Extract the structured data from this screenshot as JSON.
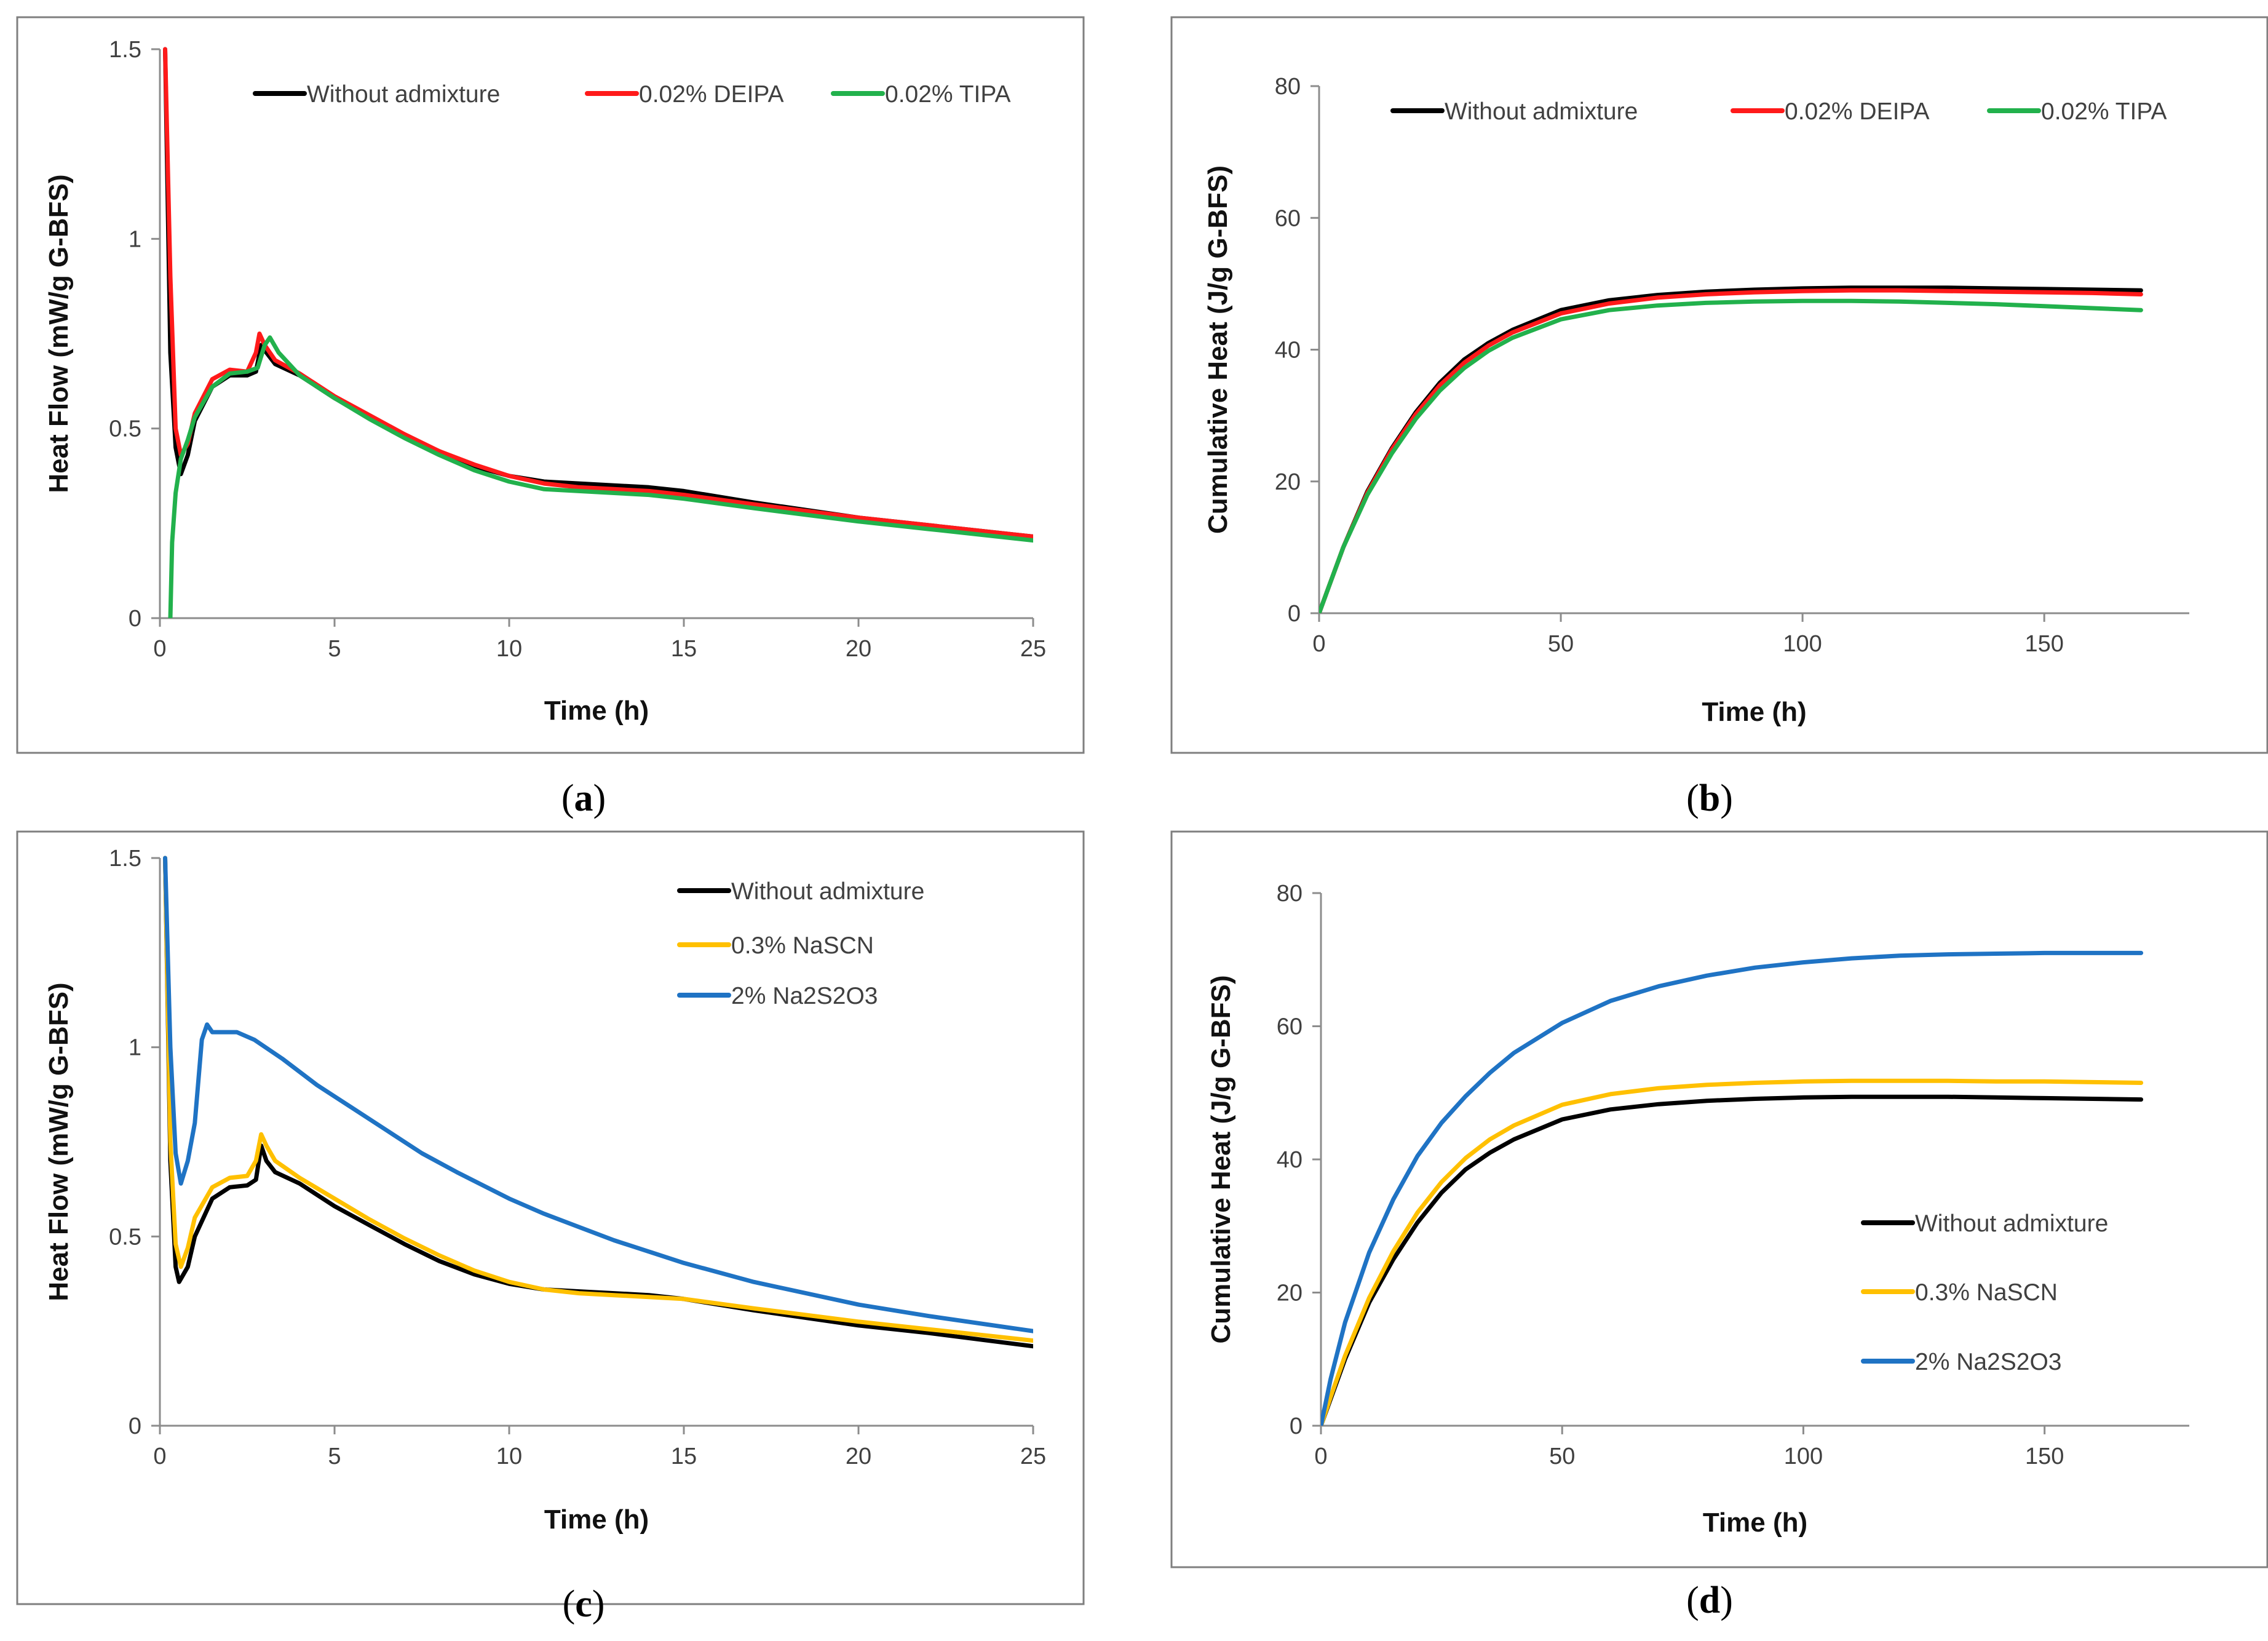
{
  "figure": {
    "panel_labels": [
      {
        "open": "(",
        "letter": "a",
        "close": ")"
      },
      {
        "open": "(",
        "letter": "b",
        "close": ")"
      },
      {
        "open": "(",
        "letter": "c",
        "close": ")"
      },
      {
        "open": "(",
        "letter": "d",
        "close": ")"
      }
    ]
  },
  "chart_data": [
    {
      "id": "a",
      "type": "line",
      "title": "",
      "xlabel": "Time (h)",
      "ylabel": "Heat Flow  (mW/g G-BFS)",
      "xlim": [
        0,
        25
      ],
      "ylim": [
        0,
        1.5
      ],
      "xticks": [
        0,
        5,
        10,
        15,
        20,
        25
      ],
      "xtick_labels": [
        "0",
        "5",
        "10",
        "15",
        "20",
        "25"
      ],
      "yticks": [
        0,
        0.5,
        1,
        1.5
      ],
      "ytick_labels": [
        "0",
        "0.5",
        "1",
        "1.5"
      ],
      "grid": false,
      "legend_position": "top",
      "series": [
        {
          "name": "Without admixture",
          "color": "#000000",
          "x": [
            0.15,
            0.3,
            0.45,
            0.6,
            0.8,
            1.0,
            1.5,
            2.0,
            2.5,
            2.75,
            2.9,
            3.05,
            3.3,
            4.0,
            5,
            6,
            7,
            8,
            9,
            10,
            11,
            12,
            13,
            14,
            15,
            17,
            20,
            22,
            25
          ],
          "y": [
            1.5,
            0.7,
            0.45,
            0.38,
            0.43,
            0.52,
            0.61,
            0.64,
            0.64,
            0.65,
            0.72,
            0.7,
            0.67,
            0.64,
            0.58,
            0.53,
            0.48,
            0.44,
            0.4,
            0.375,
            0.36,
            0.355,
            0.35,
            0.345,
            0.335,
            0.305,
            0.265,
            0.245,
            0.215
          ]
        },
        {
          "name": "0.02% DEIPA",
          "color": "#ff1a1a",
          "x": [
            0.15,
            0.3,
            0.45,
            0.6,
            0.8,
            1.0,
            1.5,
            2.0,
            2.5,
            2.75,
            2.85,
            3.0,
            3.3,
            4.0,
            5,
            6,
            7,
            8,
            9,
            10,
            11,
            12,
            13,
            14,
            15,
            17,
            20,
            22,
            25
          ],
          "y": [
            1.5,
            0.9,
            0.5,
            0.43,
            0.46,
            0.54,
            0.63,
            0.655,
            0.65,
            0.7,
            0.75,
            0.72,
            0.68,
            0.645,
            0.585,
            0.535,
            0.485,
            0.44,
            0.405,
            0.375,
            0.355,
            0.345,
            0.34,
            0.335,
            0.325,
            0.3,
            0.265,
            0.245,
            0.215
          ]
        },
        {
          "name": "0.02% TIPA",
          "color": "#22b14c",
          "x": [
            0.3,
            0.35,
            0.45,
            0.6,
            0.8,
            1.0,
            1.5,
            2.0,
            2.5,
            2.8,
            3.0,
            3.15,
            3.4,
            4.0,
            5,
            6,
            7,
            8,
            9,
            10,
            11,
            12,
            13,
            14,
            15,
            17,
            20,
            22,
            25
          ],
          "y": [
            0.0,
            0.2,
            0.33,
            0.42,
            0.47,
            0.53,
            0.61,
            0.645,
            0.65,
            0.66,
            0.72,
            0.74,
            0.7,
            0.64,
            0.58,
            0.525,
            0.475,
            0.43,
            0.39,
            0.36,
            0.34,
            0.335,
            0.33,
            0.325,
            0.315,
            0.29,
            0.255,
            0.235,
            0.205
          ]
        }
      ]
    },
    {
      "id": "b",
      "type": "line",
      "title": "",
      "xlabel": "Time (h)",
      "ylabel": "Cumulative Heat (J/g G-BFS)",
      "xlim": [
        0,
        180
      ],
      "ylim": [
        0,
        80
      ],
      "xticks": [
        0,
        50,
        100,
        150
      ],
      "xtick_labels": [
        "0",
        "50",
        "100",
        "150"
      ],
      "yticks": [
        0,
        20,
        40,
        60,
        80
      ],
      "ytick_labels": [
        "0",
        "20",
        "40",
        "60",
        "80"
      ],
      "grid": false,
      "legend_position": "top",
      "series": [
        {
          "name": "Without admixture",
          "color": "#000000",
          "x": [
            0,
            2,
            5,
            10,
            15,
            20,
            25,
            30,
            35,
            40,
            50,
            60,
            70,
            80,
            90,
            100,
            110,
            120,
            130,
            140,
            150,
            160,
            170
          ],
          "y": [
            0,
            4,
            10,
            18.5,
            25,
            30.5,
            35,
            38.5,
            41,
            43,
            46,
            47.5,
            48.3,
            48.8,
            49.1,
            49.3,
            49.4,
            49.4,
            49.4,
            49.3,
            49.2,
            49.1,
            49.0
          ]
        },
        {
          "name": "0.02% DEIPA",
          "color": "#ff1a1a",
          "x": [
            0,
            2,
            5,
            10,
            15,
            20,
            25,
            30,
            35,
            40,
            50,
            60,
            70,
            80,
            90,
            100,
            110,
            120,
            130,
            140,
            150,
            160,
            170
          ],
          "y": [
            0,
            4,
            10,
            18.3,
            24.8,
            30.2,
            34.6,
            38,
            40.6,
            42.6,
            45.5,
            47.0,
            47.9,
            48.4,
            48.7,
            48.9,
            49.0,
            49.0,
            48.9,
            48.8,
            48.7,
            48.6,
            48.4
          ]
        },
        {
          "name": "0.02% TIPA",
          "color": "#22b14c",
          "x": [
            0,
            2,
            5,
            10,
            15,
            20,
            25,
            30,
            35,
            40,
            50,
            60,
            70,
            80,
            90,
            100,
            110,
            120,
            130,
            140,
            150,
            160,
            170
          ],
          "y": [
            0,
            4,
            10,
            18.0,
            24.2,
            29.5,
            33.8,
            37.2,
            39.8,
            41.8,
            44.6,
            46.0,
            46.7,
            47.1,
            47.3,
            47.4,
            47.4,
            47.3,
            47.1,
            46.9,
            46.6,
            46.3,
            46.0
          ]
        }
      ]
    },
    {
      "id": "c",
      "type": "line",
      "title": "",
      "xlabel": "Time (h)",
      "ylabel": "Heat Flow  (mW/g G-BFS)",
      "xlim": [
        0,
        25
      ],
      "ylim": [
        0,
        1.5
      ],
      "xticks": [
        0,
        5,
        10,
        15,
        20,
        25
      ],
      "xtick_labels": [
        "0",
        "5",
        "10",
        "15",
        "20",
        "25"
      ],
      "yticks": [
        0,
        0.5,
        1,
        1.5
      ],
      "ytick_labels": [
        "0",
        "0.5",
        "1",
        "1.5"
      ],
      "grid": false,
      "legend_position": "top-right",
      "series": [
        {
          "name": "Without admixture",
          "color": "#000000",
          "x": [
            0.15,
            0.3,
            0.45,
            0.55,
            0.8,
            1.0,
            1.5,
            2.0,
            2.5,
            2.75,
            2.9,
            3.05,
            3.3,
            4.0,
            5,
            6,
            7,
            8,
            9,
            10,
            11,
            12,
            13,
            14,
            15,
            17,
            20,
            22,
            25
          ],
          "y": [
            1.5,
            0.7,
            0.42,
            0.38,
            0.42,
            0.5,
            0.6,
            0.63,
            0.635,
            0.65,
            0.74,
            0.7,
            0.67,
            0.64,
            0.58,
            0.53,
            0.48,
            0.435,
            0.4,
            0.375,
            0.36,
            0.355,
            0.35,
            0.345,
            0.335,
            0.305,
            0.265,
            0.245,
            0.21
          ]
        },
        {
          "name": "0.3% NaSCN",
          "color": "#ffc000",
          "x": [
            0.15,
            0.3,
            0.45,
            0.6,
            0.8,
            1.0,
            1.5,
            2.0,
            2.5,
            2.75,
            2.9,
            3.05,
            3.3,
            4.0,
            5,
            6,
            7,
            8,
            9,
            10,
            11,
            12,
            13,
            14,
            15,
            17,
            20,
            22,
            25
          ],
          "y": [
            1.5,
            0.75,
            0.48,
            0.42,
            0.47,
            0.55,
            0.63,
            0.655,
            0.66,
            0.7,
            0.77,
            0.74,
            0.7,
            0.655,
            0.6,
            0.545,
            0.495,
            0.45,
            0.41,
            0.38,
            0.36,
            0.35,
            0.345,
            0.34,
            0.335,
            0.31,
            0.275,
            0.255,
            0.225
          ]
        },
        {
          "name": "2% Na2S2O3",
          "color": "#1f73c4",
          "x": [
            0.15,
            0.3,
            0.45,
            0.6,
            0.8,
            1.0,
            1.2,
            1.35,
            1.5,
            1.8,
            2.2,
            2.7,
            3.5,
            4.5,
            5.5,
            6.5,
            7.5,
            8.5,
            10,
            11,
            12,
            13,
            14,
            15,
            17,
            20,
            22,
            25
          ],
          "y": [
            1.5,
            1.0,
            0.72,
            0.64,
            0.7,
            0.8,
            1.02,
            1.06,
            1.04,
            1.04,
            1.04,
            1.02,
            0.97,
            0.9,
            0.84,
            0.78,
            0.72,
            0.67,
            0.6,
            0.56,
            0.525,
            0.49,
            0.46,
            0.43,
            0.38,
            0.32,
            0.29,
            0.25
          ]
        }
      ]
    },
    {
      "id": "d",
      "type": "line",
      "title": "",
      "xlabel": "Time (h)",
      "ylabel": "Cumulative Heat (J/g G-BFS)",
      "xlim": [
        0,
        180
      ],
      "ylim": [
        0,
        80
      ],
      "xticks": [
        0,
        50,
        100,
        150
      ],
      "xtick_labels": [
        "0",
        "50",
        "100",
        "150"
      ],
      "yticks": [
        0,
        20,
        40,
        60,
        80
      ],
      "ytick_labels": [
        "0",
        "20",
        "40",
        "60",
        "80"
      ],
      "grid": false,
      "legend_position": "bottom-right",
      "series": [
        {
          "name": "Without admixture",
          "color": "#000000",
          "x": [
            0,
            2,
            5,
            10,
            15,
            20,
            25,
            30,
            35,
            40,
            50,
            60,
            70,
            80,
            90,
            100,
            110,
            120,
            130,
            140,
            150,
            160,
            170
          ],
          "y": [
            0,
            4,
            10,
            18.5,
            25,
            30.5,
            35,
            38.5,
            41,
            43,
            46,
            47.5,
            48.3,
            48.8,
            49.1,
            49.3,
            49.4,
            49.4,
            49.4,
            49.3,
            49.2,
            49.1,
            49.0
          ]
        },
        {
          "name": "0.3% NaSCN",
          "color": "#ffc000",
          "x": [
            0,
            2,
            5,
            10,
            15,
            20,
            25,
            30,
            35,
            40,
            50,
            60,
            70,
            80,
            90,
            100,
            110,
            120,
            130,
            140,
            150,
            160,
            170
          ],
          "y": [
            0,
            4.3,
            10.5,
            19.2,
            26.2,
            32,
            36.6,
            40.2,
            43,
            45.1,
            48.2,
            49.8,
            50.7,
            51.2,
            51.5,
            51.7,
            51.8,
            51.8,
            51.8,
            51.7,
            51.7,
            51.6,
            51.5
          ]
        },
        {
          "name": "2% Na2S2O3",
          "color": "#1f73c4",
          "x": [
            0,
            2,
            5,
            10,
            15,
            20,
            25,
            30,
            35,
            40,
            50,
            60,
            70,
            80,
            90,
            100,
            110,
            120,
            130,
            140,
            150,
            160,
            170
          ],
          "y": [
            0,
            7,
            15.5,
            26,
            34,
            40.5,
            45.5,
            49.5,
            53,
            56,
            60.5,
            63.8,
            66,
            67.6,
            68.8,
            69.6,
            70.2,
            70.6,
            70.8,
            70.9,
            71.0,
            71.0,
            71.0
          ]
        }
      ]
    }
  ]
}
